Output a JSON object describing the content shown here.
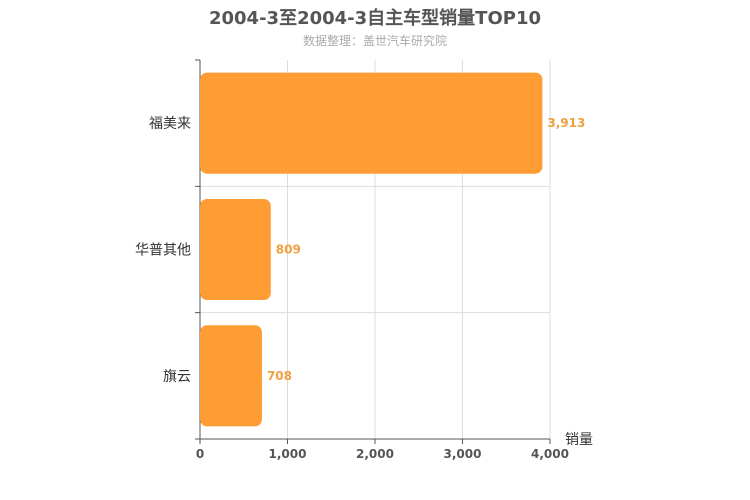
{
  "colors": {
    "bar": "#ff9c33",
    "label": "#f0a040",
    "grid": "#dddddd",
    "axis": "#555555"
  },
  "chart_data": {
    "type": "bar",
    "orientation": "horizontal",
    "title": "2004-3至2004-3自主车型销量TOP10",
    "subtitle": "数据整理：盖世汽车研究院",
    "xlabel": "销量",
    "ylabel": "",
    "categories": [
      "福美来",
      "华普其他",
      "旗云"
    ],
    "values": [
      3913,
      809,
      708
    ],
    "data_labels": [
      "3,913",
      "809",
      "708"
    ],
    "xlim": [
      0,
      4000
    ],
    "xticks": [
      0,
      1000,
      2000,
      3000,
      4000
    ],
    "xtick_labels": [
      "0",
      "1,000",
      "2,000",
      "3,000",
      "4,000"
    ],
    "grid": true,
    "legend": "none"
  }
}
